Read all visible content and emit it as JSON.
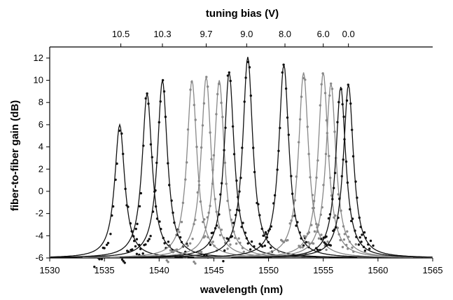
{
  "chart_data": {
    "type": "line",
    "xlabel": "wavelength (nm)",
    "ylabel": "fiber-to-fiber gain (dB)",
    "top_axis_label": "tuning bias (V)",
    "xlim": [
      1530,
      1565
    ],
    "ylim": [
      -6,
      13
    ],
    "x_ticks": [
      "1530",
      "1535",
      "1540",
      "1545",
      "1550",
      "1555",
      "1560",
      "1565"
    ],
    "y_ticks": [
      "-6",
      "-4",
      "-2",
      "0",
      "2",
      "4",
      "6",
      "8",
      "10",
      "12"
    ],
    "top_ticks": [
      {
        "wavelength": 1536.5,
        "label": "10.5"
      },
      {
        "wavelength": 1540.3,
        "label": "10.3"
      },
      {
        "wavelength": 1544.3,
        "label": "9.7"
      },
      {
        "wavelength": 1548.0,
        "label": "9.0"
      },
      {
        "wavelength": 1551.5,
        "label": "8.0"
      },
      {
        "wavelength": 1555.0,
        "label": "6.0"
      },
      {
        "wavelength": 1557.3,
        "label": "0.0"
      }
    ],
    "grid": false,
    "series": [
      {
        "center": 1536.4,
        "peak": 6.0,
        "color": "#111111"
      },
      {
        "center": 1538.9,
        "peak": 8.8,
        "color": "#111111"
      },
      {
        "center": 1540.3,
        "peak": 10.0,
        "color": "#111111"
      },
      {
        "center": 1543.0,
        "peak": 10.0,
        "color": "#888888"
      },
      {
        "center": 1544.3,
        "peak": 10.3,
        "color": "#888888"
      },
      {
        "center": 1545.5,
        "peak": 10.0,
        "color": "#888888"
      },
      {
        "center": 1546.4,
        "peak": 10.7,
        "color": "#111111"
      },
      {
        "center": 1548.1,
        "peak": 12.1,
        "color": "#111111"
      },
      {
        "center": 1551.4,
        "peak": 11.4,
        "color": "#111111"
      },
      {
        "center": 1553.2,
        "peak": 10.7,
        "color": "#888888"
      },
      {
        "center": 1555.0,
        "peak": 10.7,
        "color": "#888888"
      },
      {
        "center": 1555.7,
        "peak": 9.7,
        "color": "#888888"
      },
      {
        "center": 1556.6,
        "peak": 9.4,
        "color": "#111111"
      },
      {
        "center": 1557.3,
        "peak": 9.6,
        "color": "#111111"
      }
    ],
    "baseline": -6
  }
}
